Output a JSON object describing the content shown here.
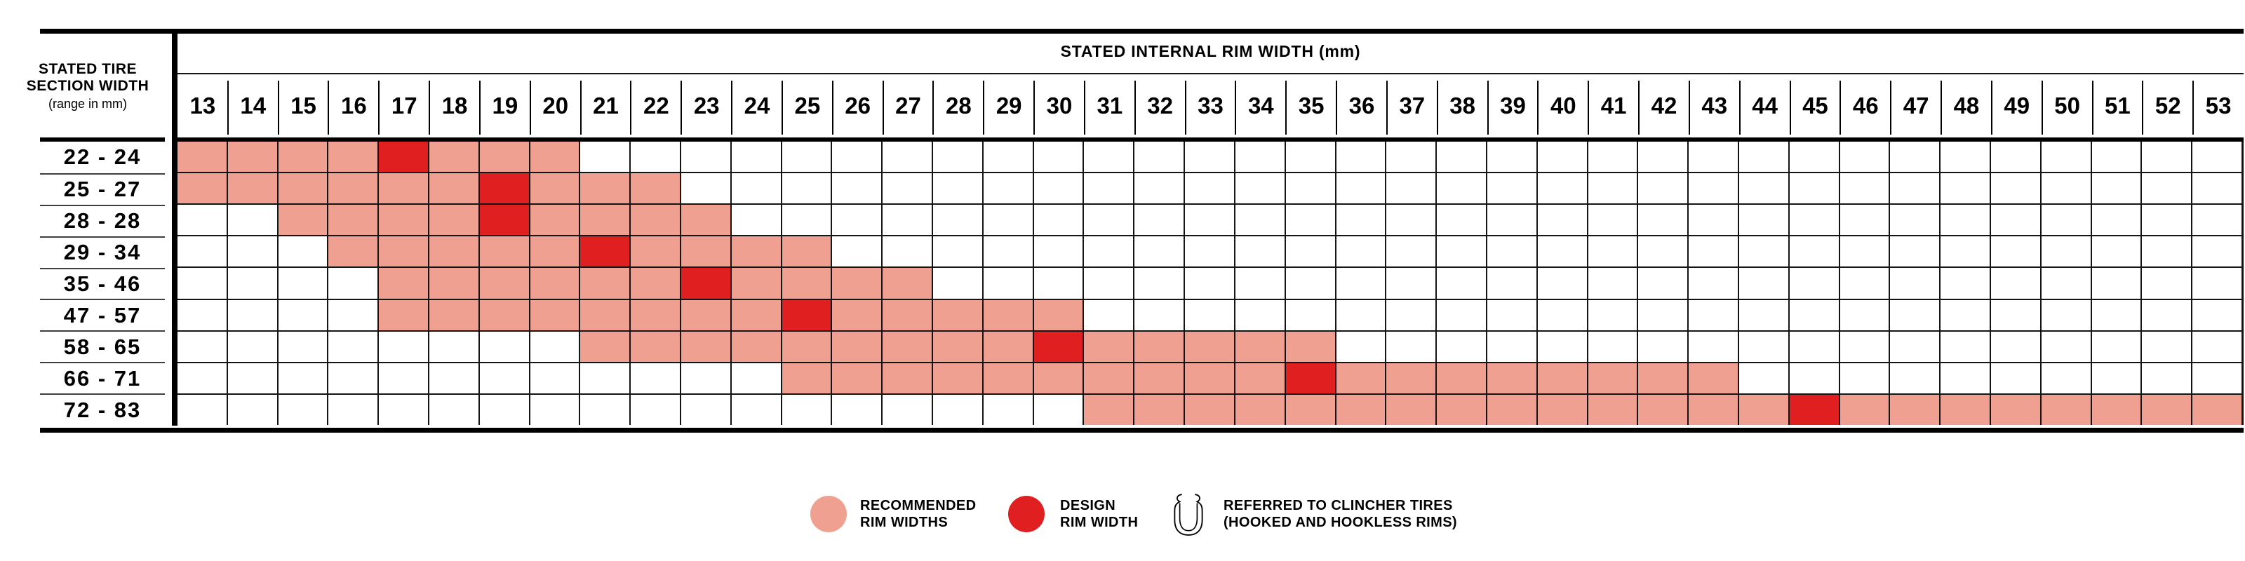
{
  "colors": {
    "recommended": "#F0A090",
    "design": "#DF1F20",
    "grid_line": "#141414",
    "label_separator": "#3F3F3F"
  },
  "chart_data": {
    "type": "heatmap",
    "title": "STATED INTERNAL RIM WIDTH (mm)",
    "row_axis_title_lines": [
      "STATED TIRE",
      "SECTION WIDTH",
      "(range in mm)"
    ],
    "columns": [
      13,
      14,
      15,
      16,
      17,
      18,
      19,
      20,
      21,
      22,
      23,
      24,
      25,
      26,
      27,
      28,
      29,
      30,
      31,
      32,
      33,
      34,
      35,
      36,
      37,
      38,
      39,
      40,
      41,
      42,
      43,
      44,
      45,
      46,
      47,
      48,
      49,
      50,
      51,
      52,
      53
    ],
    "rows": [
      {
        "label": "22 - 24",
        "recommended": [
          13,
          20
        ],
        "design": 17
      },
      {
        "label": "25 - 27",
        "recommended": [
          13,
          22
        ],
        "design": 19
      },
      {
        "label": "28 - 28",
        "recommended": [
          15,
          23
        ],
        "design": 19
      },
      {
        "label": "29 - 34",
        "recommended": [
          16,
          25
        ],
        "design": 21
      },
      {
        "label": "35 - 46",
        "recommended": [
          17,
          27
        ],
        "design": 23
      },
      {
        "label": "47 - 57",
        "recommended": [
          17,
          30
        ],
        "design": 25
      },
      {
        "label": "58 - 65",
        "recommended": [
          21,
          35
        ],
        "design": 30
      },
      {
        "label": "66 - 71",
        "recommended": [
          25,
          43
        ],
        "design": 35
      },
      {
        "label": "72 - 83",
        "recommended": [
          31,
          53
        ],
        "design": 45
      }
    ],
    "legend": {
      "items": [
        {
          "swatch": "recommended",
          "lines": [
            "RECOMMENDED",
            "RIM WIDTHS"
          ]
        },
        {
          "swatch": "design",
          "lines": [
            "DESIGN",
            "RIM WIDTH"
          ]
        },
        {
          "swatch": "rim-icon",
          "lines": [
            "REFERRED TO CLINCHER TIRES",
            "(HOOKED AND HOOKLESS RIMS)"
          ]
        }
      ]
    }
  }
}
